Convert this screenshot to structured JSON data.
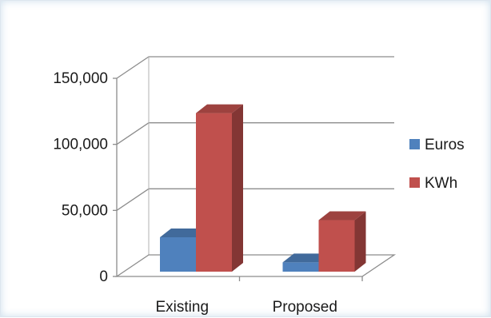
{
  "chart_data": {
    "type": "bar",
    "title": "",
    "xlabel": "",
    "ylabel": "",
    "categories": [
      "Existing",
      "Proposed"
    ],
    "series": [
      {
        "name": "Euros",
        "color": "#4f81bd",
        "values": [
          26000,
          7000
        ]
      },
      {
        "name": "KWh",
        "color": "#c0504d",
        "values": [
          120000,
          39000
        ]
      }
    ],
    "ylim": [
      0,
      150000
    ],
    "yticks": [
      0,
      50000,
      100000,
      150000
    ],
    "ytick_labels": [
      "0",
      "50,000",
      "100,000",
      "150,000"
    ],
    "grid": true,
    "style": "3d-clustered-column",
    "legend_position": "right"
  }
}
